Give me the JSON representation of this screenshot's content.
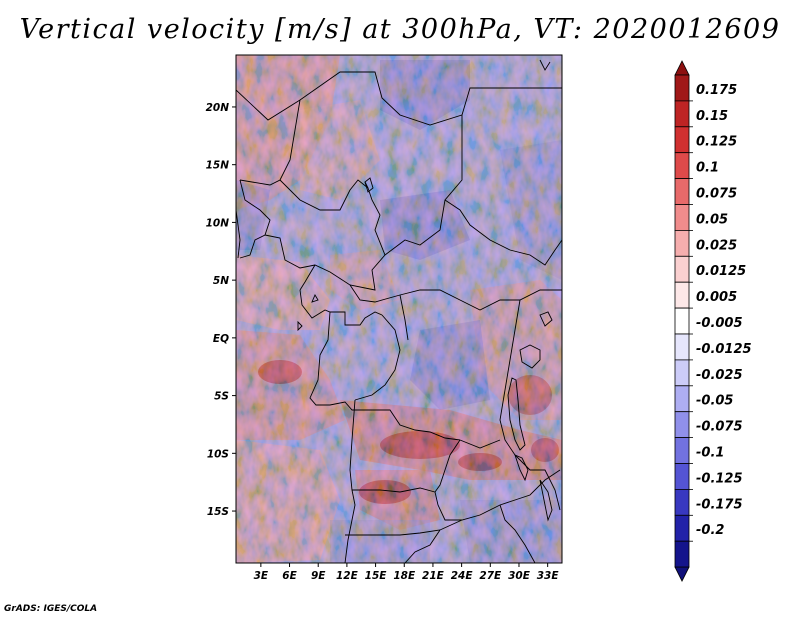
{
  "title": "Vertical velocity [m/s] at 300hPa, VT: 2020012609",
  "credit": "GrADS: IGES/COLA",
  "map": {
    "region": "Central Africa",
    "lat_labels": [
      "20N",
      "15N",
      "10N",
      "5N",
      "EQ",
      "5S",
      "10S",
      "15S"
    ],
    "lat_values": [
      20,
      15,
      10,
      5,
      0,
      -5,
      -10,
      -15
    ],
    "lon_labels": [
      "3E",
      "6E",
      "9E",
      "12E",
      "15E",
      "18E",
      "21E",
      "24E",
      "27E",
      "30E",
      "33E"
    ],
    "lon_values": [
      3,
      6,
      9,
      12,
      15,
      18,
      21,
      24,
      27,
      30,
      33
    ],
    "lat_range": [
      -19.5,
      24.5
    ],
    "lon_range": [
      0.4,
      34.5
    ]
  },
  "colorbar": {
    "labels": [
      "0.175",
      "0.15",
      "0.125",
      "0.1",
      "0.075",
      "0.05",
      "0.025",
      "0.0125",
      "0.005",
      "-0.005",
      "-0.0125",
      "-0.025",
      "-0.05",
      "-0.075",
      "-0.1",
      "-0.125",
      "-0.175",
      "-0.2"
    ],
    "colors": [
      "#a01818",
      "#be2424",
      "#d03030",
      "#de4a4a",
      "#e86a6a",
      "#f08c8c",
      "#f6aeae",
      "#fad0d0",
      "#fde8e8",
      "#ffffff",
      "#e6e6fc",
      "#ccccf8",
      "#aeaef2",
      "#9090ea",
      "#7272e0",
      "#5454d4",
      "#3838c0",
      "#2222a8",
      "#14148c"
    ],
    "cap_top_color": "#8c1010",
    "cap_bottom_color": "#10107a"
  }
}
